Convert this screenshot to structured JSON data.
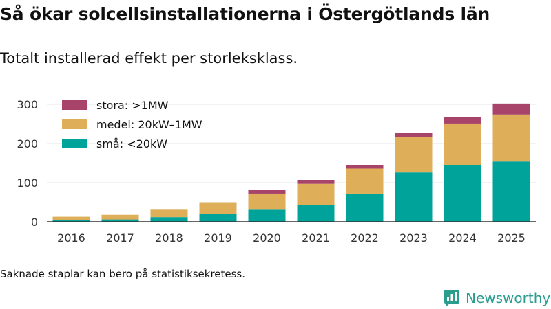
{
  "header": {
    "title": "Så ökar solcellsinstallationerna i Östergötlands län",
    "subtitle": "Totalt installerad effekt per storleksklass."
  },
  "footer": {
    "note": "Saknade staplar kan bero på statistiksekretess.",
    "brand": "Newsworthy",
    "brand_icon": "bar-chart-logo-icon"
  },
  "colors": {
    "small": "#00a39a",
    "medium": "#deae58",
    "large": "#a8436a",
    "brand": "#2a9d8f",
    "grid": "#e6e6e6",
    "axis": "#333333"
  },
  "chart_data": {
    "type": "bar",
    "stacked": true,
    "categories": [
      "2016",
      "2017",
      "2018",
      "2019",
      "2020",
      "2021",
      "2022",
      "2023",
      "2024",
      "2025"
    ],
    "series": [
      {
        "key": "small",
        "name": "små: <20kW",
        "values": [
          4,
          6,
          12,
          21,
          31,
          43,
          72,
          126,
          144,
          154
        ]
      },
      {
        "key": "medium",
        "name": "medel: 20kW–1MW",
        "values": [
          9,
          12,
          19,
          29,
          41,
          54,
          64,
          90,
          107,
          120
        ]
      },
      {
        "key": "large",
        "name": "stora: >1MW",
        "values": [
          0,
          0,
          0,
          0,
          9,
          10,
          9,
          12,
          17,
          28
        ]
      }
    ],
    "legend_order": [
      "large",
      "medium",
      "small"
    ],
    "yticks": [
      0,
      100,
      200,
      300
    ],
    "ylim": [
      0,
      310
    ],
    "title": "Så ökar solcellsinstallationerna i Östergötlands län",
    "xlabel": "",
    "ylabel": "",
    "grid": true,
    "legend_position": "top-left"
  }
}
